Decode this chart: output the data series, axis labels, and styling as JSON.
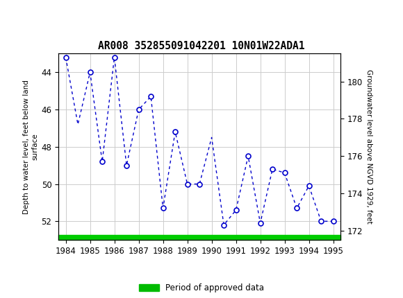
{
  "title": "AR008 352855091042201 10N01W22ADA1",
  "ylabel_left": "Depth to water level, feet below land\nsurface",
  "ylabel_right": "Groundwater level above NGVD 1929, feet",
  "years": [
    1984.0,
    1984.5,
    1985.0,
    1985.5,
    1986.0,
    1986.5,
    1987.0,
    1987.5,
    1988.0,
    1988.5,
    1989.0,
    1989.5,
    1990.0,
    1990.5,
    1991.0,
    1991.5,
    1992.0,
    1992.5,
    1993.0,
    1993.5,
    1994.0,
    1994.5,
    1995.0
  ],
  "depth_values": [
    43.2,
    46.8,
    44.0,
    48.8,
    43.2,
    49.0,
    46.0,
    45.3,
    51.3,
    47.2,
    50.0,
    50.0,
    47.5,
    52.2,
    51.4,
    48.5,
    52.1,
    49.2,
    49.4,
    51.3,
    50.1,
    52.0,
    52.0
  ],
  "has_marker": [
    true,
    false,
    true,
    true,
    true,
    true,
    true,
    true,
    true,
    true,
    true,
    true,
    false,
    true,
    true,
    true,
    true,
    true,
    true,
    true,
    true,
    true,
    true
  ],
  "ylim_left": [
    53.0,
    43.0
  ],
  "ylim_right": [
    171.5,
    181.5
  ],
  "xlim": [
    1983.7,
    1995.3
  ],
  "xticks": [
    1984,
    1985,
    1986,
    1987,
    1988,
    1989,
    1990,
    1991,
    1992,
    1993,
    1994,
    1995
  ],
  "yticks_left": [
    44.0,
    46.0,
    48.0,
    50.0,
    52.0
  ],
  "yticks_right": [
    180.0,
    178.0,
    176.0,
    174.0,
    172.0
  ],
  "line_color": "#0000CC",
  "marker_color": "#0000CC",
  "grid_color": "#CCCCCC",
  "background_color": "#FFFFFF",
  "header_color": "#1B6B3A",
  "legend_label": "Period of approved data",
  "legend_color": "#00BB00",
  "green_bar_color": "#00CC00"
}
